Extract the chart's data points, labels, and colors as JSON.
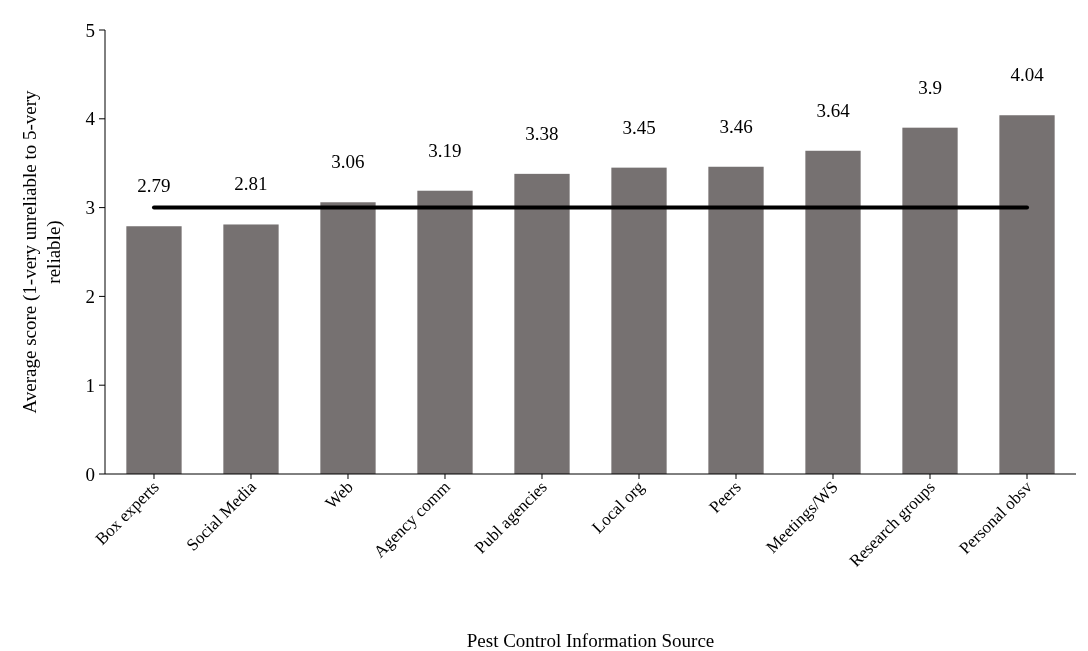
{
  "chart_data": {
    "type": "bar",
    "xlabel": "Pest Control Information Source",
    "ylabel": "Average score (1-very unreliable to 5-very reliable)",
    "categories": [
      "Box experts",
      "Social Media",
      "Web",
      "Agency comm",
      "Publ agencies",
      "Local org",
      "Peers",
      "Meetings/WS",
      "Research groups",
      "Personal obsv"
    ],
    "values": [
      2.79,
      2.81,
      3.06,
      3.19,
      3.38,
      3.45,
      3.46,
      3.64,
      3.9,
      4.04
    ],
    "color": "#767171",
    "ylim": [
      0,
      5
    ],
    "yticks": [
      0,
      1,
      2,
      3,
      4,
      5
    ],
    "data_labels": true,
    "grid": false,
    "ref_lines": [
      {
        "axis": "y",
        "value": 3,
        "color": "#000000",
        "line_style": "solid"
      }
    ]
  }
}
